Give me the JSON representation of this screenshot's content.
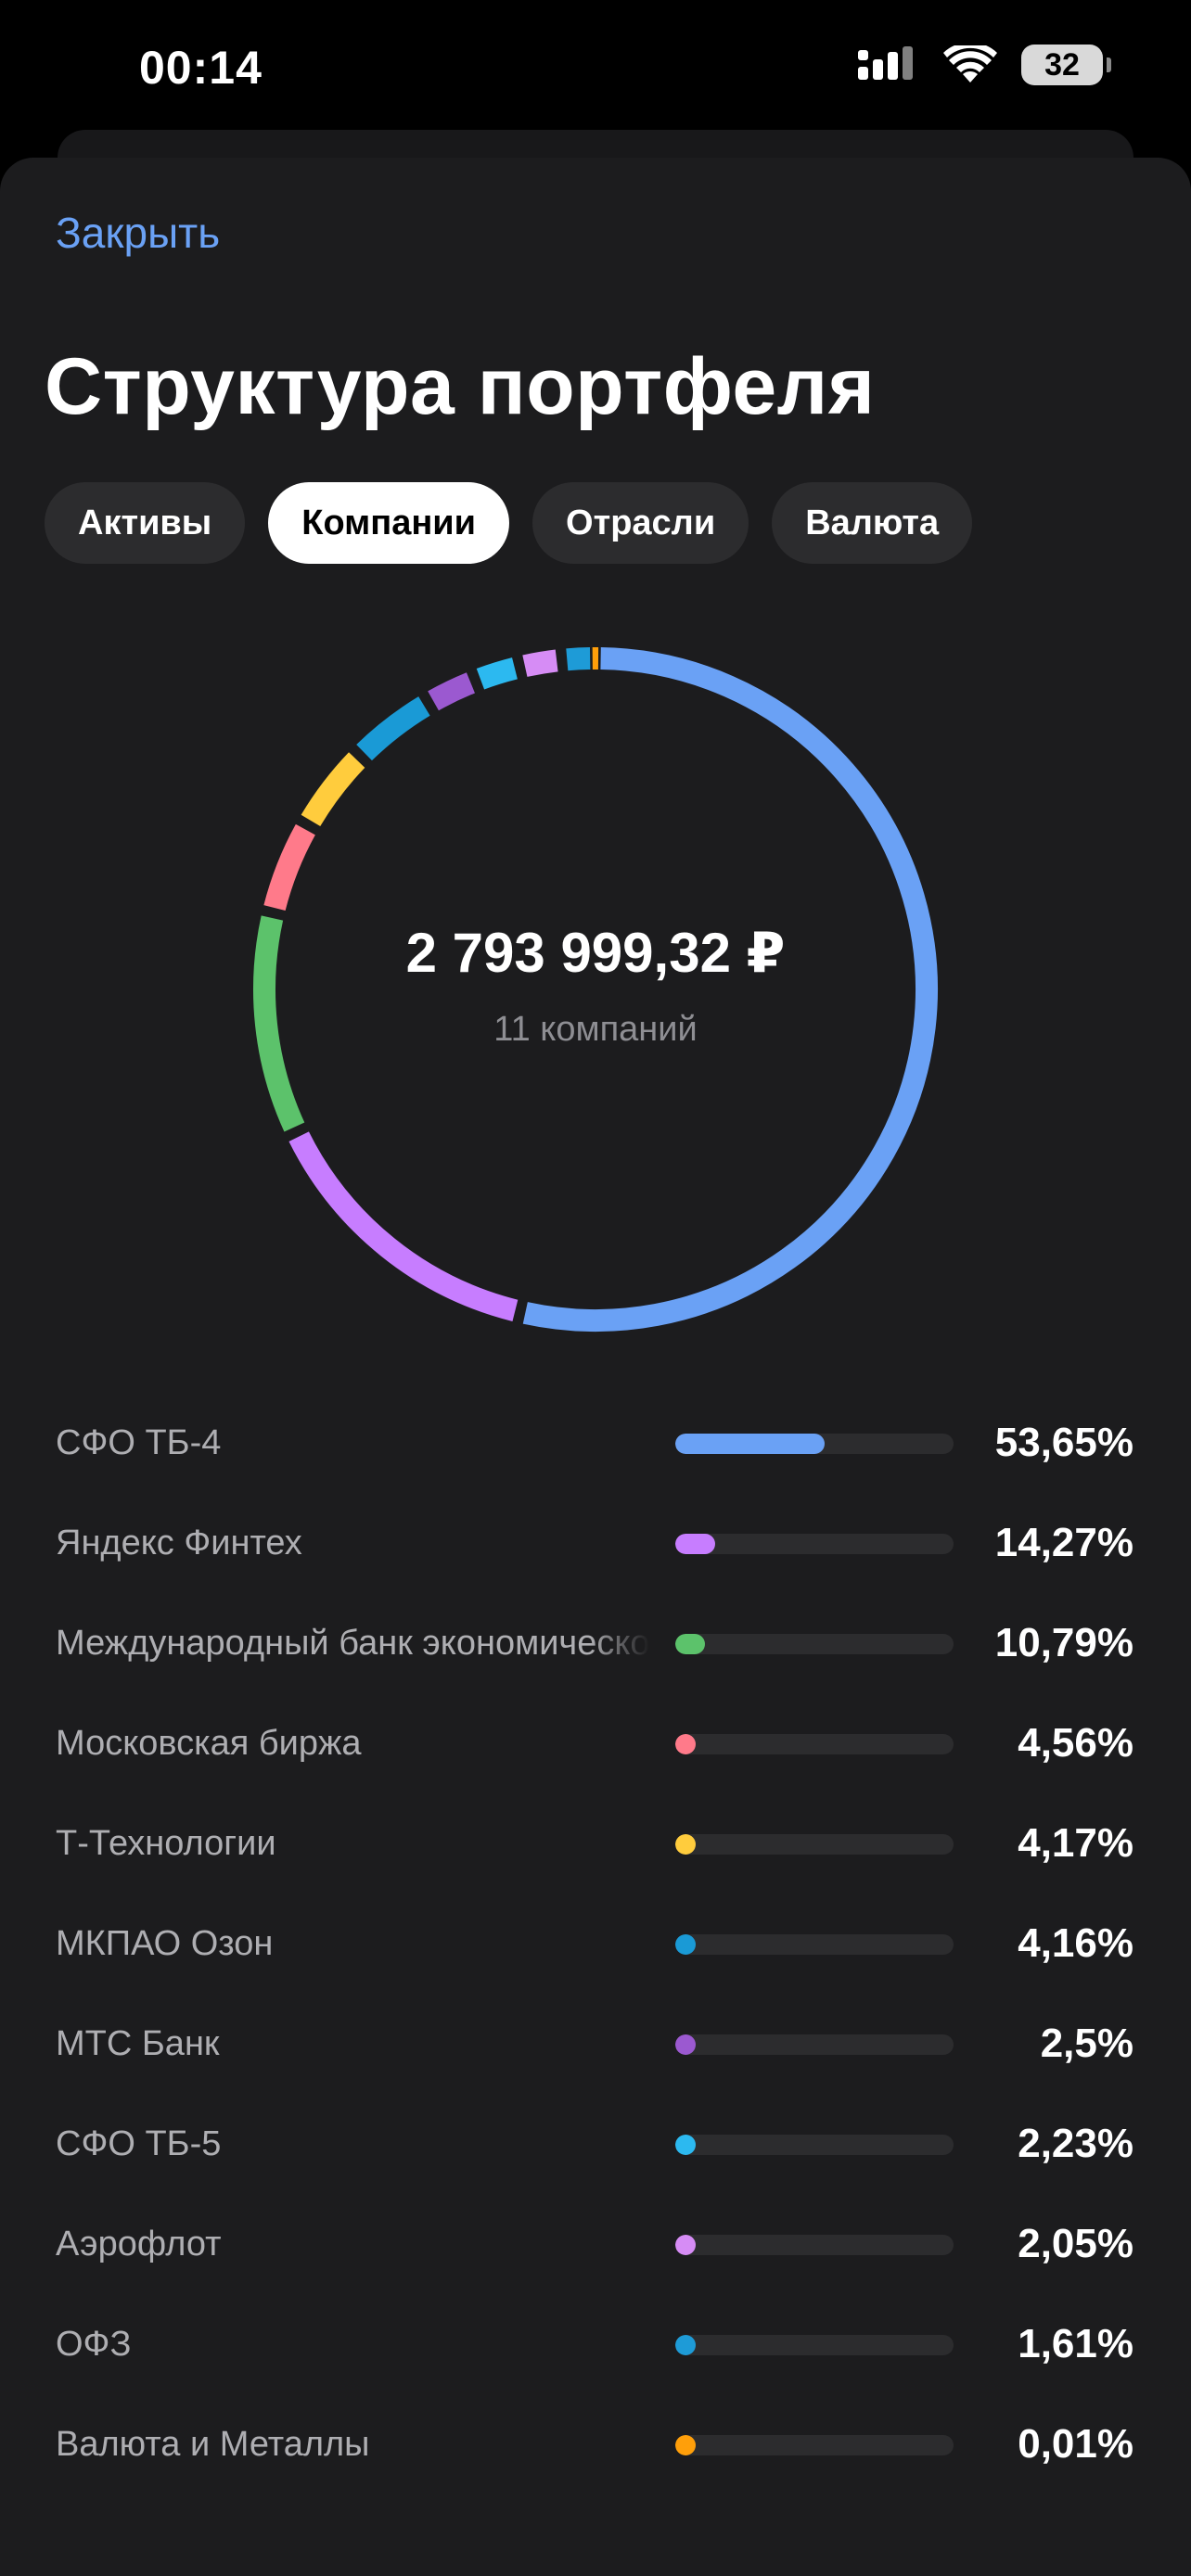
{
  "status": {
    "time": "00:14",
    "battery": "32"
  },
  "header": {
    "close_label": "Закрыть",
    "title": "Структура портфеля"
  },
  "tabs": [
    {
      "label": "Активы",
      "active": false
    },
    {
      "label": "Компании",
      "active": true
    },
    {
      "label": "Отрасли",
      "active": false
    },
    {
      "label": "Валюта",
      "active": false
    }
  ],
  "summary": {
    "total": "2 793 999,32 ₽",
    "count_label": "11 компаний"
  },
  "chart_data": {
    "type": "pie",
    "style": "donut",
    "series": [
      {
        "name": "СФО ТБ-4",
        "value": 53.65,
        "label": "53,65%",
        "color": "#6aa1f5"
      },
      {
        "name": "Яндекс Финтех",
        "value": 14.27,
        "label": "14,27%",
        "color": "#c77dff"
      },
      {
        "name": "Международный банк экономического сотрудничества",
        "value": 10.79,
        "label": "10,79%",
        "color": "#5cc26b"
      },
      {
        "name": "Московская биржа",
        "value": 4.56,
        "label": "4,56%",
        "color": "#ff7a8a"
      },
      {
        "name": "Т-Технологии",
        "value": 4.17,
        "label": "4,17%",
        "color": "#ffcc3d"
      },
      {
        "name": "МКПАО Озон",
        "value": 4.16,
        "label": "4,16%",
        "color": "#1a9ad6"
      },
      {
        "name": "МТС Банк",
        "value": 2.5,
        "label": "2,5%",
        "color": "#9b59d0"
      },
      {
        "name": "СФО ТБ-5",
        "value": 2.23,
        "label": "2,23%",
        "color": "#2cb9f0"
      },
      {
        "name": "Аэрофлот",
        "value": 2.05,
        "label": "2,05%",
        "color": "#d68cf5"
      },
      {
        "name": "ОФЗ",
        "value": 1.61,
        "label": "1,61%",
        "color": "#1e9bd7"
      },
      {
        "name": "Валюта и Металлы",
        "value": 0.01,
        "label": "0,01%",
        "color": "#ff9f0a"
      }
    ]
  }
}
